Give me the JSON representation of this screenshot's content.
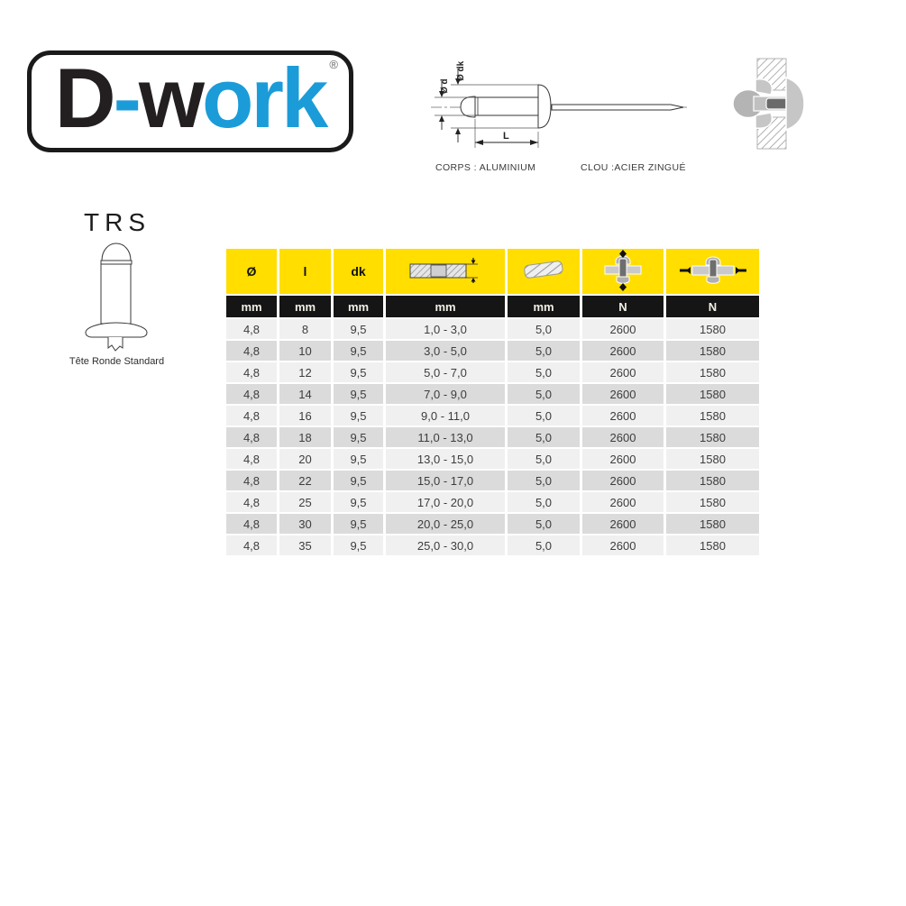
{
  "logo": {
    "segments": [
      {
        "text": "D",
        "color": "#231f20"
      },
      {
        "text": "-",
        "color": "#1b9cd8"
      },
      {
        "text": "w",
        "color": "#231f20"
      },
      {
        "text": "ork",
        "color": "#1b9cd8"
      }
    ],
    "registered_mark": "®"
  },
  "diagram": {
    "labels": {
      "d": "Ø d",
      "dk": "Ø dk",
      "length": "L"
    },
    "captions": {
      "body": "CORPS : ALUMINIUM",
      "nail": "CLOU :ACIER ZINGUÉ"
    }
  },
  "product": {
    "code": "TRS",
    "name": "Tête Ronde Standard"
  },
  "table": {
    "header_labels": [
      "Ø",
      "l",
      "dk"
    ],
    "header_icons": [
      "grip-range-icon",
      "drill-bit-icon",
      "shear-strength-icon",
      "tensile-strength-icon"
    ],
    "unit_row": [
      "mm",
      "mm",
      "mm",
      "mm",
      "mm",
      "N",
      "N"
    ],
    "rows": [
      [
        "4,8",
        "8",
        "9,5",
        "1,0 - 3,0",
        "5,0",
        "2600",
        "1580"
      ],
      [
        "4,8",
        "10",
        "9,5",
        "3,0 - 5,0",
        "5,0",
        "2600",
        "1580"
      ],
      [
        "4,8",
        "12",
        "9,5",
        "5,0 - 7,0",
        "5,0",
        "2600",
        "1580"
      ],
      [
        "4,8",
        "14",
        "9,5",
        "7,0 - 9,0",
        "5,0",
        "2600",
        "1580"
      ],
      [
        "4,8",
        "16",
        "9,5",
        "9,0 - 11,0",
        "5,0",
        "2600",
        "1580"
      ],
      [
        "4,8",
        "18",
        "9,5",
        "11,0 - 13,0",
        "5,0",
        "2600",
        "1580"
      ],
      [
        "4,8",
        "20",
        "9,5",
        "13,0 - 15,0",
        "5,0",
        "2600",
        "1580"
      ],
      [
        "4,8",
        "22",
        "9,5",
        "15,0 - 17,0",
        "5,0",
        "2600",
        "1580"
      ],
      [
        "4,8",
        "25",
        "9,5",
        "17,0 - 20,0",
        "5,0",
        "2600",
        "1580"
      ],
      [
        "4,8",
        "30",
        "9,5",
        "20,0 - 25,0",
        "5,0",
        "2600",
        "1580"
      ],
      [
        "4,8",
        "35",
        "9,5",
        "25,0 - 30,0",
        "5,0",
        "2600",
        "1580"
      ]
    ]
  },
  "colors": {
    "brand_blue": "#1b9cd8",
    "brand_black": "#231f20",
    "header_yellow": "#ffde00",
    "header_black": "#151515",
    "row_light": "#f0f0f0",
    "row_dark": "#dbdbdb"
  }
}
